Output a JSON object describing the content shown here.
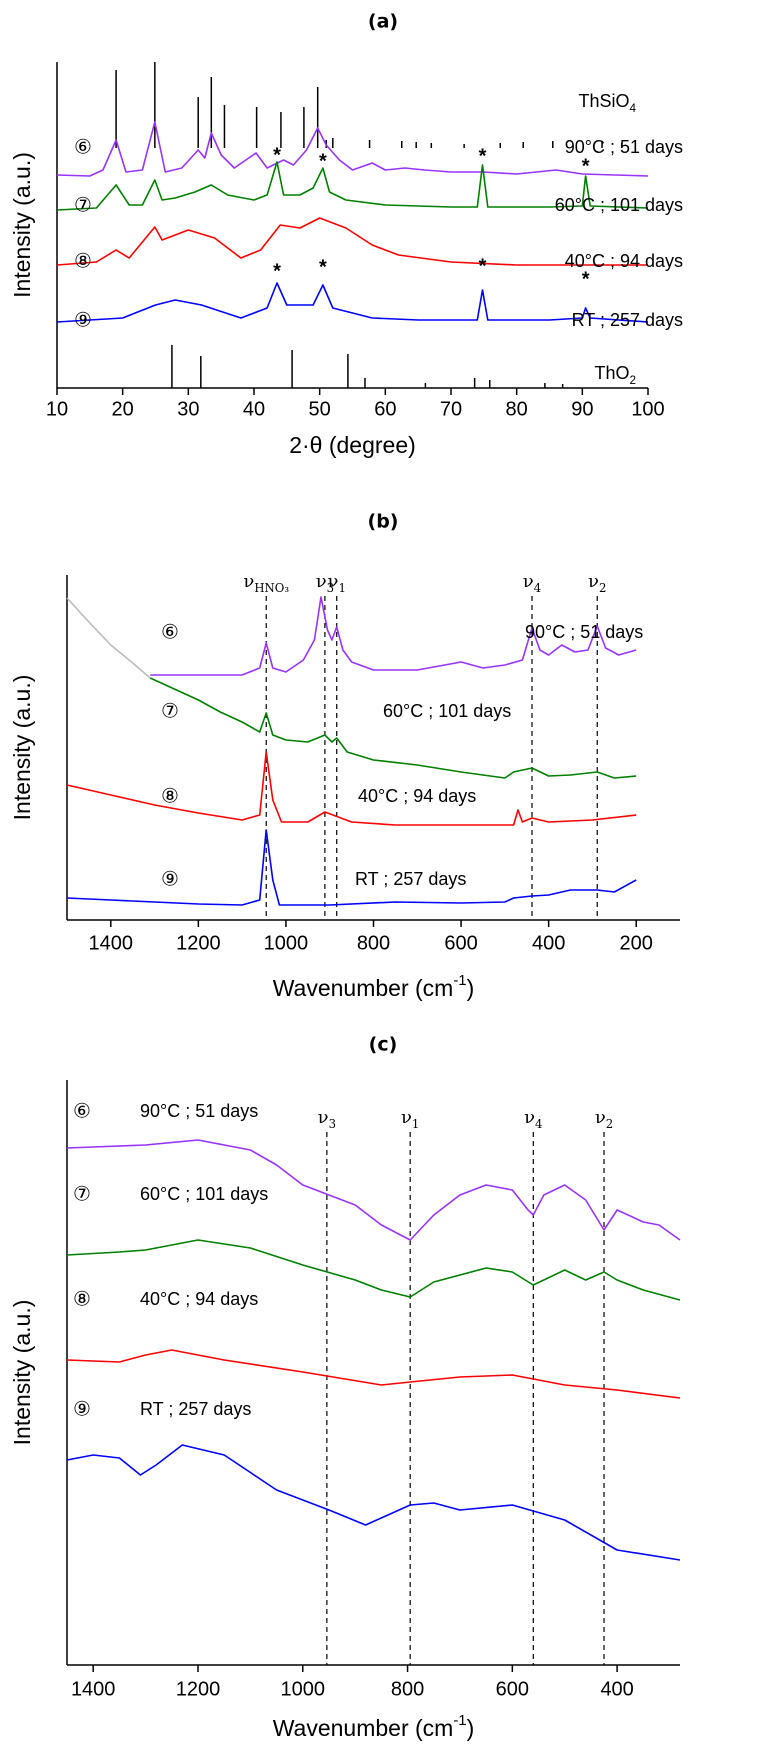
{
  "chart_data": [
    {
      "type": "line",
      "title": "(a)",
      "xlabel": "2·θ (degree)",
      "ylabel": "Intensity (a.u.)",
      "xlim": [
        10,
        100
      ],
      "xticks": [
        10,
        20,
        30,
        40,
        50,
        60,
        70,
        80,
        90,
        100
      ],
      "ylim": [
        0,
        326
      ],
      "series": [
        {
          "name": "90°C ; 51 days",
          "marker": "⑥",
          "color": "#9933ff",
          "x": [
            10,
            15,
            17,
            19,
            20.5,
            23,
            24.9,
            26.5,
            29,
            31.5,
            32.5,
            33.5,
            35,
            37,
            40.3,
            42,
            44.5,
            46,
            48,
            49.7,
            51,
            53,
            55,
            58,
            60,
            63,
            66,
            70,
            75,
            80,
            86,
            90,
            95,
            100
          ],
          "values": [
            213,
            212,
            218,
            248,
            216,
            218,
            266,
            216,
            220,
            238,
            230,
            255,
            233,
            220,
            235,
            220,
            228,
            223,
            238,
            260,
            243,
            228,
            218,
            225,
            218,
            220,
            218,
            216,
            216,
            214,
            218,
            214,
            213,
            212
          ]
        },
        {
          "name": "60°C ; 101 days",
          "marker": "⑦",
          "color": "#008000",
          "x": [
            10,
            16,
            19,
            21,
            23,
            24.9,
            26,
            28,
            31,
            33.5,
            36,
            40,
            42,
            43.5,
            44.5,
            47,
            49,
            50.5,
            51.5,
            54,
            60,
            70,
            74,
            74.8,
            75.6,
            85,
            90,
            90.5,
            91.2,
            100
          ],
          "values": [
            178,
            180,
            203,
            183,
            183,
            208,
            188,
            190,
            196,
            203,
            193,
            188,
            193,
            226,
            193,
            193,
            200,
            220,
            196,
            188,
            183,
            181,
            181,
            223,
            181,
            181,
            182,
            212,
            182,
            180
          ]
        },
        {
          "name": "40°C ; 94 days",
          "marker": "⑧",
          "color": "#ff0000",
          "x": [
            10,
            16,
            19,
            21,
            24.9,
            26,
            30,
            34,
            38,
            41,
            44,
            47,
            50,
            54,
            58,
            62,
            70,
            80,
            100
          ],
          "values": [
            123,
            126,
            138,
            130,
            161,
            148,
            158,
            150,
            130,
            138,
            163,
            160,
            170,
            160,
            143,
            133,
            126,
            123,
            123
          ]
        },
        {
          "name": "RT ; 257 days",
          "marker": "⑨",
          "color": "#0000ff",
          "x": [
            10,
            20,
            25,
            28,
            32,
            38,
            42,
            43.5,
            45,
            49,
            50.5,
            52,
            58,
            65,
            74,
            74.8,
            75.6,
            85,
            90,
            90.5,
            91.2,
            100
          ],
          "values": [
            66,
            70,
            83,
            88,
            83,
            70,
            80,
            105,
            83,
            83,
            103,
            80,
            70,
            68,
            68,
            98,
            68,
            68,
            70,
            80,
            70,
            66
          ]
        }
      ],
      "references": [
        {
          "name": {
            "text": "ThSiO",
            "sub": "4"
          },
          "base": 240,
          "x": [
            19.0,
            24.9,
            31.5,
            33.5,
            35.5,
            40.4,
            44.1,
            47.6,
            49.7,
            51.0,
            52.0,
            57.6,
            62.5,
            64.7,
            67.0,
            72.0,
            77.5,
            81.0,
            85.5,
            93.0,
            96.0
          ],
          "values": [
            318,
            326,
            291,
            311,
            283,
            281,
            276,
            281,
            301,
            248,
            250,
            248,
            247,
            246,
            245,
            244,
            245,
            246,
            247,
            246,
            245
          ]
        },
        {
          "name": {
            "text": "ThO",
            "sub": "2"
          },
          "base": 0,
          "x": [
            27.5,
            31.9,
            45.8,
            54.3,
            56.9,
            66.1,
            73.6,
            75.9,
            84.3,
            87.0
          ],
          "values": [
            43,
            32,
            38,
            34,
            10,
            5,
            10,
            8,
            5,
            4
          ]
        }
      ],
      "asterisks": {
        "text": "*",
        "x": [
          43.5,
          50.5,
          74.8,
          90.5,
          43.5,
          50.5,
          74.8,
          90.5
        ],
        "values": [
          232,
          226,
          231,
          221,
          116,
          120,
          121,
          108
        ]
      }
    },
    {
      "type": "line",
      "title": "(b)",
      "xlabel": {
        "text": "Wavenumber (cm",
        "sup": "-1",
        "after": ")"
      },
      "ylabel": "Intensity (a.u.)",
      "xlim": [
        1500,
        100
      ],
      "xticks": [
        1400,
        1200,
        1000,
        800,
        600,
        400,
        200
      ],
      "ylim": [
        0,
        345
      ],
      "series": [
        {
          "name": "90°C ; 51 days",
          "marker": "⑥",
          "color": "#9933ff",
          "x": [
            1310,
            1200,
            1100,
            1060,
            1045,
            1030,
            1000,
            960,
            935,
            920,
            905,
            895,
            884,
            870,
            850,
            800,
            700,
            600,
            550,
            500,
            460,
            438,
            420,
            400,
            370,
            340,
            310,
            289,
            270,
            240,
            200
          ],
          "values": [
            245,
            245,
            245,
            252,
            277,
            252,
            248,
            260,
            280,
            323,
            290,
            280,
            293,
            270,
            258,
            250,
            250,
            258,
            252,
            255,
            260,
            292,
            270,
            265,
            275,
            268,
            270,
            294,
            272,
            265,
            270
          ]
        },
        {
          "name": "60°C ; 101 days",
          "marker": "⑦",
          "color": "#008000",
          "x": [
            1310,
            1250,
            1200,
            1150,
            1100,
            1060,
            1045,
            1030,
            1000,
            950,
            911,
            895,
            884,
            860,
            800,
            700,
            600,
            500,
            480,
            438,
            400,
            350,
            289,
            250,
            200
          ],
          "values": [
            242,
            230,
            220,
            208,
            198,
            188,
            207,
            185,
            180,
            178,
            185,
            178,
            182,
            168,
            160,
            155,
            148,
            142,
            148,
            152,
            144,
            145,
            148,
            142,
            144
          ]
        },
        {
          "name": "40°C ; 94 days",
          "marker": "⑧",
          "color": "#ff0000",
          "x": [
            1500,
            1400,
            1300,
            1200,
            1100,
            1060,
            1045,
            1030,
            1010,
            950,
            911,
            850,
            750,
            600,
            500,
            480,
            470,
            460,
            438,
            400,
            300,
            200
          ],
          "values": [
            135,
            125,
            115,
            107,
            100,
            105,
            168,
            120,
            98,
            98,
            108,
            98,
            95,
            95,
            95,
            95,
            110,
            98,
            102,
            98,
            100,
            105
          ]
        },
        {
          "name": "RT ; 257 days",
          "marker": "⑨",
          "color": "#0000ff",
          "x": [
            1500,
            1400,
            1300,
            1200,
            1100,
            1060,
            1045,
            1030,
            1015,
            950,
            900,
            750,
            600,
            500,
            480,
            438,
            400,
            350,
            289,
            250,
            200
          ],
          "values": [
            22,
            20,
            18,
            16,
            15,
            20,
            90,
            40,
            15,
            15,
            15,
            18,
            17,
            18,
            22,
            24,
            25,
            30,
            30,
            28,
            40
          ]
        },
        {
          "color": "#bbbbbb",
          "x": [
            1500,
            1450,
            1400,
            1350,
            1310
          ],
          "values": [
            322,
            298,
            275,
            257,
            242
          ]
        }
      ],
      "lines": [
        {
          "x": 1045,
          "label": {
            "text": "ν",
            "sub": "HNO₃"
          }
        },
        {
          "x": 911,
          "label": {
            "text": "ν",
            "sub": "3"
          }
        },
        {
          "x": 884,
          "label": {
            "text": "ν",
            "sub": "1"
          }
        },
        {
          "x": 438,
          "label": {
            "text": "ν",
            "sub": "4"
          }
        },
        {
          "x": 289,
          "label": {
            "text": "ν",
            "sub": "2"
          }
        }
      ]
    },
    {
      "type": "line",
      "title": "(c)",
      "xlabel": {
        "text": "Wavenumber (cm",
        "sup": "-1",
        "after": ")"
      },
      "ylabel": "Intensity (a.u.)",
      "xlim": [
        1450,
        280
      ],
      "xticks": [
        1400,
        1200,
        1000,
        800,
        600,
        400
      ],
      "ylim": [
        0,
        585
      ],
      "series": [
        {
          "name": "90°C ; 51 days",
          "marker": "⑥",
          "color": "#9933ff",
          "x": [
            1450,
            1400,
            1300,
            1200,
            1100,
            1050,
            1000,
            950,
            900,
            850,
            795,
            750,
            700,
            650,
            600,
            570,
            560,
            540,
            500,
            460,
            425,
            400,
            350,
            320,
            280
          ],
          "values": [
            517,
            518,
            520,
            525,
            515,
            500,
            480,
            470,
            460,
            440,
            425,
            450,
            470,
            480,
            475,
            455,
            450,
            470,
            480,
            465,
            435,
            455,
            443,
            440,
            425
          ]
        },
        {
          "name": "60°C ; 101 days",
          "marker": "⑦",
          "color": "#008000",
          "x": [
            1450,
            1350,
            1300,
            1200,
            1100,
            1000,
            900,
            850,
            795,
            750,
            650,
            600,
            560,
            500,
            460,
            425,
            400,
            350,
            280
          ],
          "values": [
            410,
            413,
            415,
            425,
            417,
            400,
            385,
            375,
            368,
            383,
            397,
            393,
            380,
            395,
            385,
            393,
            385,
            375,
            365
          ]
        },
        {
          "name": "40°C ; 94 days",
          "marker": "⑧",
          "color": "#ff0000",
          "x": [
            1450,
            1350,
            1300,
            1250,
            1150,
            1000,
            850,
            795,
            700,
            600,
            500,
            400,
            280
          ],
          "values": [
            305,
            303,
            310,
            315,
            305,
            293,
            280,
            283,
            288,
            290,
            280,
            275,
            267
          ]
        },
        {
          "name": "RT ; 257 days",
          "marker": "⑨",
          "color": "#0000ff",
          "x": [
            1450,
            1400,
            1350,
            1310,
            1280,
            1230,
            1150,
            1050,
            950,
            880,
            795,
            750,
            700,
            600,
            500,
            400,
            280
          ],
          "values": [
            205,
            210,
            207,
            190,
            200,
            220,
            210,
            175,
            155,
            140,
            160,
            162,
            155,
            160,
            145,
            115,
            105
          ]
        }
      ],
      "lines": [
        {
          "x": 954,
          "label": {
            "text": "ν",
            "sub": "3"
          }
        },
        {
          "x": 795,
          "label": {
            "text": "ν",
            "sub": "1"
          }
        },
        {
          "x": 560,
          "label": {
            "text": "ν",
            "sub": "4"
          }
        },
        {
          "x": 425,
          "label": {
            "text": "ν",
            "sub": "2"
          }
        }
      ]
    }
  ]
}
